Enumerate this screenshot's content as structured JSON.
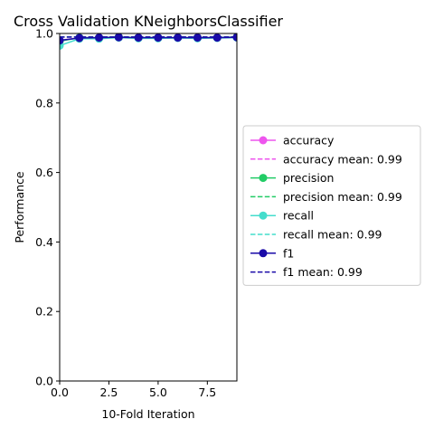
{
  "chart_data": {
    "type": "line",
    "title": "Cross Validation KNeighborsClassifier",
    "xlabel": "10-Fold Iteration",
    "ylabel": "Performance",
    "xlim": [
      0,
      9
    ],
    "ylim": [
      0,
      1.0
    ],
    "xticks": [
      0,
      2.5,
      5,
      7.5
    ],
    "xtick_labels": [
      "0.0",
      "2.5",
      "5.0",
      "7.5"
    ],
    "yticks": [
      0,
      0.2,
      0.4,
      0.6,
      0.8,
      1.0
    ],
    "ytick_labels": [
      "0.0",
      "0.2",
      "0.4",
      "0.6",
      "0.8",
      "1.0"
    ],
    "x": [
      0,
      1,
      2,
      3,
      4,
      5,
      6,
      7,
      8,
      9
    ],
    "grid": false,
    "legend_position": "right, outside",
    "series": [
      {
        "name": "accuracy",
        "color": "#ee55ee",
        "style": "solid-marker",
        "values": [
          0.98,
          0.988,
          0.988,
          0.99,
          0.988,
          0.988,
          0.988,
          0.988,
          0.988,
          0.99
        ]
      },
      {
        "name": "accuracy mean: 0.99",
        "color": "#ee55ee",
        "style": "dashed",
        "mean": 0.99
      },
      {
        "name": "precision",
        "color": "#22cc66",
        "style": "solid-marker",
        "values": [
          0.978,
          0.988,
          0.988,
          0.99,
          0.988,
          0.988,
          0.988,
          0.988,
          0.988,
          0.99
        ]
      },
      {
        "name": "precision mean: 0.99",
        "color": "#22cc66",
        "style": "dashed",
        "mean": 0.99
      },
      {
        "name": "recall",
        "color": "#44ddcc",
        "style": "solid-marker",
        "values": [
          0.965,
          0.985,
          0.985,
          0.988,
          0.986,
          0.986,
          0.987,
          0.986,
          0.987,
          0.988
        ]
      },
      {
        "name": "recall mean: 0.99",
        "color": "#44ddcc",
        "style": "dashed",
        "mean": 0.99
      },
      {
        "name": "f1",
        "color": "#1a0aa8",
        "style": "solid-marker",
        "values": [
          0.98,
          0.987,
          0.988,
          0.989,
          0.988,
          0.988,
          0.988,
          0.988,
          0.988,
          0.989
        ]
      },
      {
        "name": "f1 mean: 0.99",
        "color": "#1a0aa8",
        "style": "dashed",
        "mean": 0.99
      }
    ]
  }
}
